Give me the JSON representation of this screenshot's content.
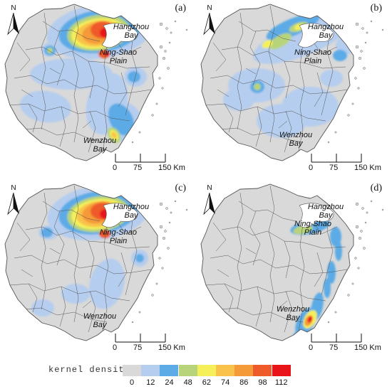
{
  "panels": [
    {
      "id": "a",
      "label": "(a)",
      "places": [
        {
          "key": "hz",
          "lines": [
            "Hangzhou",
            "Bay"
          ]
        },
        {
          "key": "ns",
          "lines": [
            "Ning-Shao",
            "Plain"
          ]
        },
        {
          "key": "wz",
          "lines": [
            "Wenzhou",
            "Bay"
          ]
        }
      ]
    },
    {
      "id": "b",
      "label": "(b)",
      "places": [
        {
          "key": "hz",
          "lines": [
            "Hangzhou",
            "Bay"
          ]
        },
        {
          "key": "ns",
          "lines": [
            "Ning-Shao",
            "Plain"
          ]
        },
        {
          "key": "wz",
          "lines": [
            "Wenzhou",
            "Bay"
          ]
        }
      ]
    },
    {
      "id": "c",
      "label": "(c)",
      "places": [
        {
          "key": "hz",
          "lines": [
            "Hangzhou",
            "Bay"
          ]
        },
        {
          "key": "ns",
          "lines": [
            "Ning-Shao",
            "Plain"
          ]
        },
        {
          "key": "wz",
          "lines": [
            "Wenzhou",
            "Bay"
          ]
        }
      ]
    },
    {
      "id": "d",
      "label": "(d)",
      "places": [
        {
          "key": "hz",
          "lines": [
            "Hangzhou",
            "Bay"
          ]
        },
        {
          "key": "ns",
          "lines": [
            "Ning-Shao",
            "Plain"
          ]
        },
        {
          "key": "wz",
          "lines": [
            "Wenzhou",
            "Bay"
          ]
        }
      ]
    }
  ],
  "north_label": "N",
  "scale_bar": {
    "ticks": [
      "0",
      "75",
      "150 Km"
    ]
  },
  "legend": {
    "title": "kernel density",
    "ticks": [
      "0",
      "12",
      "24",
      "48",
      "62",
      "74",
      "86",
      "98",
      "112"
    ],
    "colors": [
      "#d9d9d9",
      "#b5cdee",
      "#5cabe6",
      "#b8d47a",
      "#f5f05a",
      "#f9c24a",
      "#f49a38",
      "#ef5a2a",
      "#e8141a"
    ]
  },
  "colors": {
    "land": "#d9d9d9",
    "border": "#555555",
    "water": "#ffffff"
  }
}
